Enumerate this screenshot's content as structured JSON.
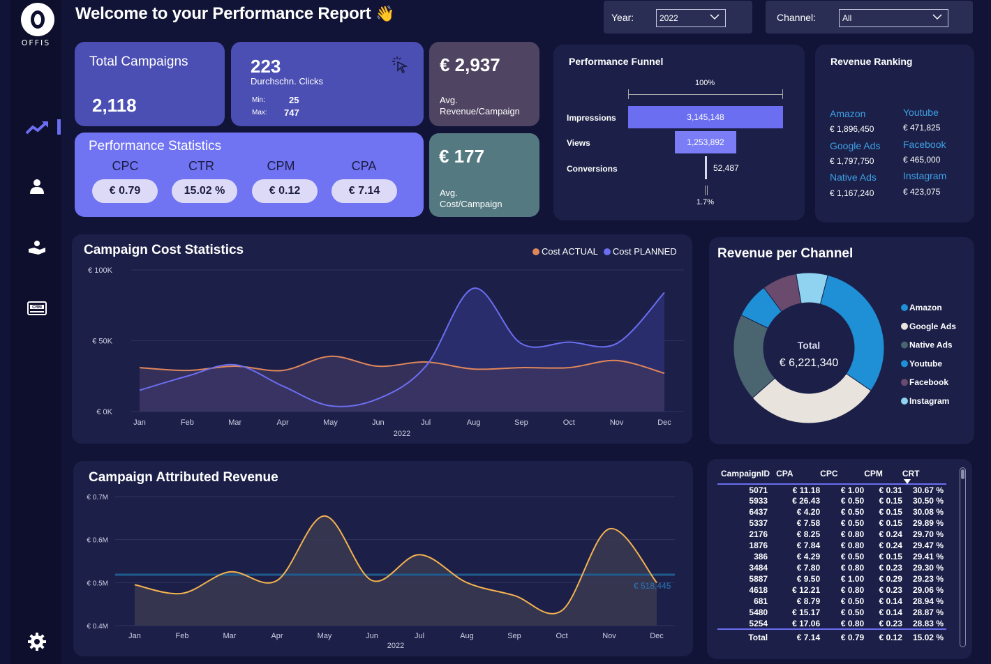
{
  "brand": {
    "logo_text": "OFFIS"
  },
  "header": {
    "title": "Welcome to your Performance Report",
    "wave": "👋"
  },
  "filters": {
    "year": {
      "label": "Year:",
      "value": "2022"
    },
    "channel": {
      "label": "Channel:",
      "value": "All"
    }
  },
  "kpis": {
    "total_campaigns": {
      "label": "Total Campaigns",
      "value": "2,118"
    },
    "clicks": {
      "value": "223",
      "label": "Durchschn. Clicks",
      "min_label": "Min:",
      "min": "25",
      "max_label": "Max:",
      "max": "747"
    },
    "avg_revenue": {
      "value": "€ 2,937",
      "label_line1": "Avg.",
      "label_line2": "Revenue/Campaign"
    },
    "avg_cost": {
      "value": "€ 177",
      "label_line1": "Avg.",
      "label_line2": "Cost/Campaign"
    }
  },
  "stats": {
    "title": "Performance Statistics",
    "items": [
      {
        "name": "CPC",
        "value": "€ 0.79"
      },
      {
        "name": "CTR",
        "value": "15.02 %"
      },
      {
        "name": "CPM",
        "value": "€ 0.12"
      },
      {
        "name": "CPA",
        "value": "€ 7.14"
      }
    ]
  },
  "funnel": {
    "title": "Performance Funnel",
    "top_pct": "100%",
    "bottom_pct": "1.7%",
    "rows": [
      {
        "label": "Impressions",
        "value": "3,145,148",
        "num": 3145148
      },
      {
        "label": "Views",
        "value": "1,253,892",
        "num": 1253892
      },
      {
        "label": "Conversions",
        "value": "52,487",
        "num": 52487
      }
    ]
  },
  "ranking": {
    "title": "Revenue Ranking",
    "items": [
      {
        "name": "Amazon",
        "value": "€ 1,896,450"
      },
      {
        "name": "Youtube",
        "value": "€ 471,825"
      },
      {
        "name": "Google Ads",
        "value": "€ 1,797,750"
      },
      {
        "name": "Facebook",
        "value": "€ 465,000"
      },
      {
        "name": "Native Ads",
        "value": "€ 1,167,240"
      },
      {
        "name": "Instagram",
        "value": "€ 423,075"
      }
    ]
  },
  "cost_chart": {
    "title": "Campaign Cost Statistics",
    "year": "2022",
    "legend": [
      "Cost ACTUAL",
      "Cost PLANNED"
    ]
  },
  "donut": {
    "title": "Revenue per Channel",
    "center_label": "Total",
    "center_value": "€ 6,221,340"
  },
  "revenue_chart": {
    "title": "Campaign Attributed Revenue",
    "year": "2022",
    "ref_label": "€ 518,445"
  },
  "table": {
    "columns": [
      "CampaignID",
      "CPA",
      "CPC",
      "CPM",
      "CRT"
    ],
    "rows": [
      [
        "5071",
        "€ 11.18",
        "€ 1.00",
        "€ 0.31",
        "30.67 %"
      ],
      [
        "5933",
        "€ 26.43",
        "€ 0.50",
        "€ 0.15",
        "30.50 %"
      ],
      [
        "6437",
        "€ 4.20",
        "€ 0.50",
        "€ 0.15",
        "30.08 %"
      ],
      [
        "5337",
        "€ 7.58",
        "€ 0.50",
        "€ 0.15",
        "29.89 %"
      ],
      [
        "2176",
        "€ 8.25",
        "€ 0.80",
        "€ 0.24",
        "29.70 %"
      ],
      [
        "1876",
        "€ 7.84",
        "€ 0.80",
        "€ 0.24",
        "29.47 %"
      ],
      [
        "386",
        "€ 4.29",
        "€ 0.50",
        "€ 0.15",
        "29.41 %"
      ],
      [
        "3484",
        "€ 7.80",
        "€ 0.80",
        "€ 0.23",
        "29.30 %"
      ],
      [
        "5887",
        "€ 9.50",
        "€ 1.00",
        "€ 0.29",
        "29.23 %"
      ],
      [
        "4618",
        "€ 12.21",
        "€ 0.80",
        "€ 0.23",
        "29.06 %"
      ],
      [
        "681",
        "€ 8.79",
        "€ 0.50",
        "€ 0.14",
        "28.94 %"
      ],
      [
        "5480",
        "€ 15.17",
        "€ 0.50",
        "€ 0.14",
        "28.87 %"
      ],
      [
        "5254",
        "€ 17.06",
        "€ 0.80",
        "€ 0.23",
        "28.83 %"
      ]
    ],
    "total": [
      "Total",
      "€ 7.14",
      "€ 0.79",
      "€ 0.12",
      "15.02 %"
    ]
  },
  "colors": {
    "planned": "#6b6ef0",
    "actual": "#e0875a",
    "revenue_line": "#f5b34f",
    "ref_line": "#1f5b8f"
  },
  "chart_data": [
    {
      "type": "area",
      "title": "Campaign Cost Statistics",
      "categories": [
        "Jan",
        "Feb",
        "Mar",
        "Apr",
        "May",
        "Jun",
        "Jul",
        "Aug",
        "Sep",
        "Oct",
        "Nov",
        "Dec"
      ],
      "y_ticks": [
        "€ 0K",
        "€ 50K",
        "€ 100K"
      ],
      "ylim": [
        0,
        100000
      ],
      "xlabel": "2022",
      "series": [
        {
          "name": "Cost ACTUAL",
          "color": "#e0875a",
          "values": [
            31000,
            29000,
            32000,
            29000,
            39000,
            32000,
            35000,
            30000,
            31000,
            31000,
            36000,
            27000
          ]
        },
        {
          "name": "Cost PLANNED",
          "color": "#6b6ef0",
          "values": [
            15000,
            25000,
            33000,
            18000,
            4000,
            9000,
            32000,
            87000,
            48000,
            49000,
            48000,
            84000
          ]
        }
      ],
      "legend": "top-right"
    },
    {
      "type": "pie",
      "title": "Revenue per Channel",
      "categories": [
        "Amazon",
        "Google Ads",
        "Native Ads",
        "Youtube",
        "Facebook",
        "Instagram"
      ],
      "values": [
        1896450,
        1797750,
        1167240,
        471825,
        465000,
        423075
      ],
      "colors": [
        "#1f8fd6",
        "#e8e4dd",
        "#4a6470",
        "#1f8fd6",
        "#6a4b6e",
        "#8fd3f0"
      ],
      "legend": "right"
    },
    {
      "type": "area",
      "title": "Campaign Attributed Revenue",
      "categories": [
        "Jan",
        "Feb",
        "Mar",
        "Apr",
        "May",
        "Jun",
        "Jul",
        "Aug",
        "Sep",
        "Oct",
        "Nov",
        "Dec"
      ],
      "y_ticks": [
        "€ 0.4M",
        "€ 0.5M",
        "€ 0.6M",
        "€ 0.7M"
      ],
      "ylim": [
        400000,
        700000
      ],
      "xlabel": "2022",
      "series": [
        {
          "name": "Revenue",
          "color": "#f5b34f",
          "values": [
            495000,
            475000,
            525000,
            505000,
            655000,
            505000,
            565000,
            500000,
            470000,
            435000,
            625000,
            500000
          ]
        }
      ],
      "reference": 518445
    }
  ]
}
